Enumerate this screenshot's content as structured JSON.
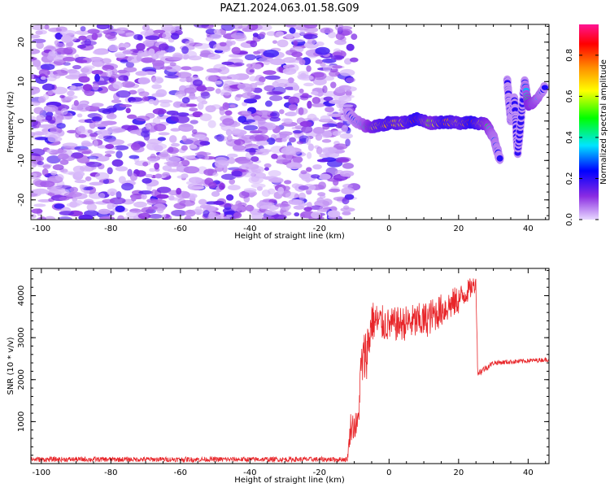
{
  "title": "PAZ1.2024.063.01.58.G09",
  "chart_data": [
    {
      "type": "heatmap",
      "xlabel": "Height of straight line (km)",
      "ylabel": "Frequency (Hz)",
      "xlim": [
        -103,
        46
      ],
      "ylim": [
        -25,
        24.5
      ],
      "xticks": [
        -100,
        -80,
        -60,
        -40,
        -20,
        0,
        20,
        40
      ],
      "yticks": [
        -20,
        -10,
        0,
        10,
        20
      ],
      "colorbar": {
        "label": "Normalized spectral amplitude",
        "range": [
          0.0,
          0.95
        ],
        "ticks": [
          0.0,
          0.2,
          0.4,
          0.6,
          0.8
        ],
        "colormap": [
          "#e8d8ff",
          "#8a2be2",
          "#0000ff",
          "#00e5ff",
          "#00ff00",
          "#ffff00",
          "#ff8c00",
          "#ff0000",
          "#ff1493"
        ]
      },
      "noise_region": {
        "x": [
          -103,
          -10
        ],
        "y": [
          -25,
          24.5
        ],
        "amplitude": [
          0.02,
          0.2
        ]
      },
      "signal_track": [
        {
          "x": -12,
          "y": 2,
          "amp": 0.2
        },
        {
          "x": -8,
          "y": -1,
          "amp": 0.3
        },
        {
          "x": -4,
          "y": -1.5,
          "amp": 0.6
        },
        {
          "x": 0,
          "y": -0.5,
          "amp": 0.7
        },
        {
          "x": 4,
          "y": -0.5,
          "amp": 0.6
        },
        {
          "x": 8,
          "y": 0.5,
          "amp": 0.8
        },
        {
          "x": 12,
          "y": -0.5,
          "amp": 0.5
        },
        {
          "x": 16,
          "y": -0.2,
          "amp": 0.75
        },
        {
          "x": 20,
          "y": -0.5,
          "amp": 0.6
        },
        {
          "x": 24,
          "y": -0.2,
          "amp": 0.8
        },
        {
          "x": 28,
          "y": -1,
          "amp": 0.5
        },
        {
          "x": 30,
          "y": -4,
          "amp": 0.3
        },
        {
          "x": 32,
          "y": -10,
          "amp": 0.2
        }
      ],
      "upper_track": [
        {
          "x": 34,
          "y": 10,
          "amp": 0.2
        },
        {
          "x": 35,
          "y": 0,
          "amp": 0.2
        },
        {
          "x": 36,
          "y": 6,
          "amp": 0.2
        },
        {
          "x": 37,
          "y": -8,
          "amp": 0.2
        },
        {
          "x": 39,
          "y": 10,
          "amp": 0.2
        },
        {
          "x": 40,
          "y": 4,
          "amp": 0.5
        },
        {
          "x": 42,
          "y": 5,
          "amp": 0.4
        },
        {
          "x": 45,
          "y": 9,
          "amp": 0.2
        }
      ]
    },
    {
      "type": "line",
      "xlabel": "Height of straight line (km)",
      "ylabel": "SNR (10 * v/v)",
      "xlim": [
        -103,
        46
      ],
      "ylim": [
        0,
        4650
      ],
      "xticks": [
        -100,
        -80,
        -60,
        -40,
        -20,
        0,
        20,
        40
      ],
      "yticks": [
        1000,
        2000,
        3000,
        4000
      ],
      "color": "#e8262a",
      "profile": [
        {
          "x": -103,
          "y": 100,
          "noise": 60
        },
        {
          "x": -12,
          "y": 100,
          "noise": 60
        },
        {
          "x": -11,
          "y": 900,
          "noise": 350
        },
        {
          "x": -9,
          "y": 900,
          "noise": 350
        },
        {
          "x": -8,
          "y": 2300,
          "noise": 600
        },
        {
          "x": -6,
          "y": 2800,
          "noise": 700
        },
        {
          "x": -5,
          "y": 3400,
          "noise": 500
        },
        {
          "x": 0,
          "y": 3300,
          "noise": 400
        },
        {
          "x": 10,
          "y": 3400,
          "noise": 450
        },
        {
          "x": 20,
          "y": 3900,
          "noise": 350
        },
        {
          "x": 25,
          "y": 4300,
          "noise": 200
        },
        {
          "x": 25.5,
          "y": 2150,
          "noise": 100
        },
        {
          "x": 30,
          "y": 2400,
          "noise": 60
        },
        {
          "x": 46,
          "y": 2480,
          "noise": 50
        }
      ]
    }
  ]
}
